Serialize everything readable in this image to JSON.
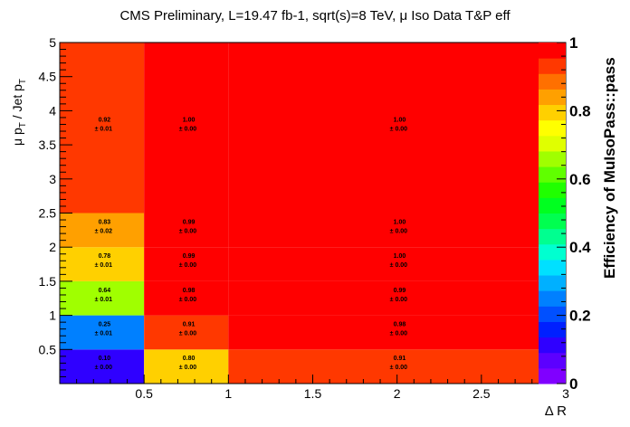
{
  "chart_data": {
    "type": "heatmap",
    "title": "CMS Preliminary, L=19.47 fb-1, sqrt(s)=8 TeV, μ Iso Data T&P eff",
    "xlabel": "Δ R",
    "ylabel": "μ p_T / Jet p_T",
    "zlabel": "Efficiency of MuIsoPass::pass",
    "xlim": [
      0,
      3
    ],
    "ylim": [
      0,
      5
    ],
    "zlim": [
      0,
      1
    ],
    "x_ticks": [
      "0.5",
      "1",
      "1.5",
      "2",
      "2.5",
      "3"
    ],
    "y_ticks": [
      "0.5",
      "1",
      "1.5",
      "2",
      "2.5",
      "3",
      "3.5",
      "4",
      "4.5",
      "5"
    ],
    "z_ticks": [
      "0",
      "0.2",
      "0.4",
      "0.6",
      "0.8",
      "1"
    ],
    "x_bins": [
      0,
      0.5,
      1,
      3
    ],
    "y_bins": [
      0,
      0.5,
      1,
      1.5,
      2,
      2.5,
      5
    ],
    "cells": [
      {
        "ix": 0,
        "iy": 0,
        "value": 0.1,
        "label": "0.10",
        "err": "± 0.00"
      },
      {
        "ix": 1,
        "iy": 0,
        "value": 0.8,
        "label": "0.80",
        "err": "± 0.00"
      },
      {
        "ix": 2,
        "iy": 0,
        "value": 0.91,
        "label": "0.91",
        "err": "± 0.00"
      },
      {
        "ix": 0,
        "iy": 1,
        "value": 0.25,
        "label": "0.25",
        "err": "± 0.01"
      },
      {
        "ix": 1,
        "iy": 1,
        "value": 0.91,
        "label": "0.91",
        "err": "± 0.00"
      },
      {
        "ix": 2,
        "iy": 1,
        "value": 0.98,
        "label": "0.98",
        "err": "± 0.00"
      },
      {
        "ix": 0,
        "iy": 2,
        "value": 0.64,
        "label": "0.64",
        "err": "± 0.01"
      },
      {
        "ix": 1,
        "iy": 2,
        "value": 0.98,
        "label": "0.98",
        "err": "± 0.00"
      },
      {
        "ix": 2,
        "iy": 2,
        "value": 0.99,
        "label": "0.99",
        "err": "± 0.00"
      },
      {
        "ix": 0,
        "iy": 3,
        "value": 0.78,
        "label": "0.78",
        "err": "± 0.01"
      },
      {
        "ix": 1,
        "iy": 3,
        "value": 0.99,
        "label": "0.99",
        "err": "± 0.00"
      },
      {
        "ix": 2,
        "iy": 3,
        "value": 1.0,
        "label": "1.00",
        "err": "± 0.00"
      },
      {
        "ix": 0,
        "iy": 4,
        "value": 0.83,
        "label": "0.83",
        "err": "± 0.02"
      },
      {
        "ix": 1,
        "iy": 4,
        "value": 0.99,
        "label": "0.99",
        "err": "± 0.00"
      },
      {
        "ix": 2,
        "iy": 4,
        "value": 1.0,
        "label": "1.00",
        "err": "± 0.00"
      },
      {
        "ix": 0,
        "iy": 5,
        "value": 0.92,
        "label": "0.92",
        "err": "± 0.01"
      },
      {
        "ix": 1,
        "iy": 5,
        "value": 1.0,
        "label": "1.00",
        "err": "± 0.00"
      },
      {
        "ix": 2,
        "iy": 5,
        "value": 1.0,
        "label": "1.00",
        "err": "± 0.00"
      }
    ],
    "palette": [
      "#8000ff",
      "#5c00ff",
      "#2f00ff",
      "#0020ff",
      "#0050ff",
      "#0080ff",
      "#00b0ff",
      "#00e0ff",
      "#00ffd0",
      "#00ff90",
      "#00ff50",
      "#00ff20",
      "#20ff00",
      "#60ff00",
      "#a0ff00",
      "#e0ff00",
      "#ffff00",
      "#ffd000",
      "#ffa000",
      "#ff7000",
      "#ff3800",
      "#ff0000"
    ],
    "grid": false,
    "legend": "colorbar-right"
  }
}
